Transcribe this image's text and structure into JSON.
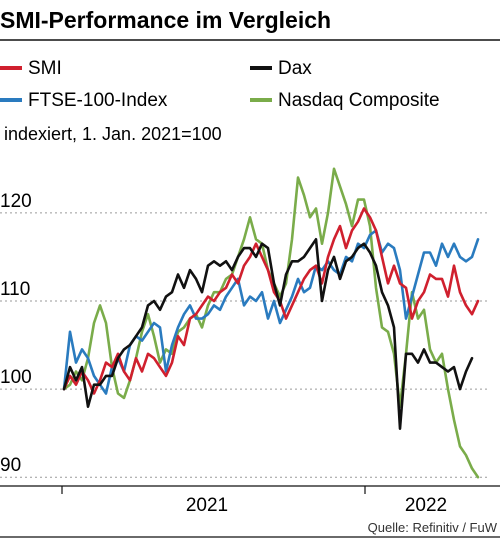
{
  "chart_data": {
    "type": "line",
    "title": "SMI-Performance im Vergleich",
    "subtitle": "indexiert, 1. Jan. 2021=100",
    "source": "Quelle: Refinitiv / FuW",
    "x_tick_labels": [
      "2021",
      "2022"
    ],
    "y_ticks": [
      90,
      100,
      110,
      120
    ],
    "ylim": [
      89,
      126
    ],
    "grid": true,
    "legend_position": "top",
    "series": [
      {
        "name": "SMI",
        "color": "#d0202e",
        "values": [
          100.0,
          101.5,
          100.5,
          102.0,
          101.0,
          99.5,
          101.0,
          103.0,
          102.5,
          104.0,
          102.0,
          101.0,
          103.5,
          102.0,
          104.0,
          103.5,
          102.5,
          101.5,
          103.0,
          106.0,
          105.0,
          108.0,
          108.5,
          109.5,
          110.5,
          110.0,
          111.0,
          111.5,
          113.0,
          112.0,
          114.0,
          115.0,
          116.5,
          115.0,
          113.5,
          111.0,
          110.0,
          108.0,
          109.5,
          111.0,
          112.5,
          113.5,
          114.0,
          112.0,
          115.0,
          117.0,
          118.5,
          116.0,
          118.0,
          119.0,
          120.5,
          119.5,
          118.0,
          115.0,
          112.0,
          114.0,
          112.0,
          111.5,
          108.0,
          110.0,
          111.0,
          113.0,
          112.5,
          112.5,
          110.5,
          114.0,
          111.0,
          109.5,
          108.5,
          110.0
        ]
      },
      {
        "name": "FTSE-100-Index",
        "color": "#2a7bbf",
        "values": [
          100.0,
          106.5,
          103.0,
          104.5,
          103.5,
          101.5,
          100.5,
          99.5,
          102.5,
          103.5,
          102.0,
          105.0,
          106.0,
          105.5,
          106.5,
          107.5,
          107.0,
          102.0,
          105.0,
          107.0,
          108.5,
          109.5,
          108.0,
          108.0,
          108.5,
          109.5,
          109.0,
          110.5,
          111.5,
          112.5,
          109.5,
          110.5,
          110.0,
          111.0,
          108.0,
          110.0,
          107.5,
          109.0,
          110.5,
          112.5,
          111.0,
          111.5,
          114.0,
          113.5,
          114.5,
          113.5,
          113.0,
          115.0,
          114.5,
          116.5,
          116.0,
          117.5,
          118.0,
          115.5,
          116.5,
          116.0,
          113.5,
          108.0,
          110.5,
          113.0,
          115.5,
          115.5,
          114.0,
          116.5,
          115.0,
          116.5,
          115.0,
          114.5,
          115.0,
          117.0
        ]
      },
      {
        "name": "Dax",
        "color": "#111111",
        "values": [
          100.0,
          102.5,
          101.0,
          102.5,
          98.0,
          100.5,
          100.5,
          101.5,
          101.5,
          103.5,
          104.5,
          105.0,
          106.0,
          107.0,
          109.5,
          110.0,
          109.0,
          110.5,
          111.0,
          113.0,
          111.5,
          113.5,
          112.5,
          111.0,
          114.0,
          114.5,
          114.0,
          114.5,
          113.5,
          115.0,
          116.0,
          116.0,
          115.0,
          116.5,
          116.0,
          112.0,
          109.5,
          113.0,
          114.5,
          114.5,
          115.0,
          116.0,
          117.0,
          110.0,
          113.5,
          115.0,
          112.5,
          114.5,
          115.0,
          116.0,
          116.5,
          115.5,
          114.0,
          111.0,
          109.5,
          107.0,
          95.5,
          104.0,
          104.0,
          103.0,
          104.5,
          103.0,
          103.0,
          102.5,
          102.0,
          102.5,
          100.0,
          102.0,
          103.5
        ]
      },
      {
        "name": "Nasdaq Composite",
        "color": "#7aac4a",
        "values": [
          100.0,
          100.5,
          102.0,
          101.0,
          103.5,
          107.5,
          109.5,
          107.5,
          102.5,
          99.5,
          99.0,
          101.0,
          103.5,
          106.5,
          108.5,
          106.0,
          103.0,
          104.5,
          104.0,
          106.5,
          107.0,
          108.0,
          108.5,
          107.0,
          109.5,
          111.0,
          111.0,
          112.5,
          113.0,
          115.0,
          117.0,
          119.5,
          117.0,
          116.5,
          113.5,
          112.0,
          110.5,
          112.0,
          117.0,
          124.0,
          122.0,
          119.5,
          120.5,
          116.5,
          120.0,
          125.0,
          123.0,
          121.0,
          118.5,
          121.5,
          121.5,
          118.5,
          111.5,
          107.0,
          106.5,
          104.0,
          98.0,
          104.0,
          111.0,
          108.0,
          109.0,
          104.5,
          103.0,
          104.0,
          100.0,
          96.5,
          93.5,
          92.5,
          91.0,
          90.0
        ]
      }
    ]
  }
}
